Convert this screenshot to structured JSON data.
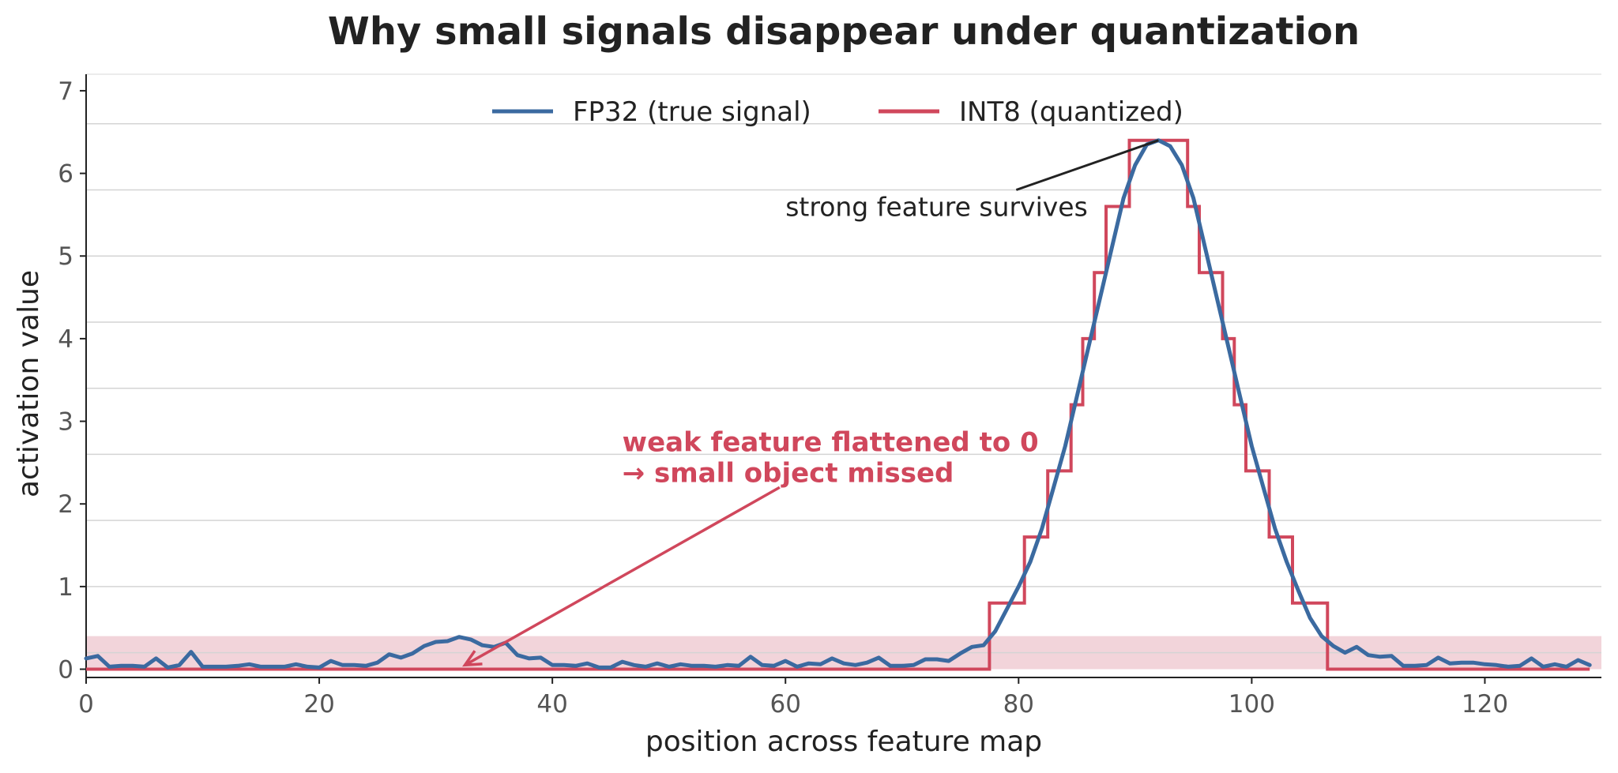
{
  "chart_data": {
    "type": "line",
    "title": "Why small signals disappear under quantization",
    "xlabel": "position across feature map",
    "ylabel": "activation value",
    "xlim": [
      0,
      130
    ],
    "ylim": [
      -0.1,
      7.2
    ],
    "xticks": [
      0,
      20,
      40,
      60,
      80,
      100,
      120
    ],
    "yticks": [
      0,
      1,
      2,
      3,
      4,
      5,
      6,
      7
    ],
    "grid": "horizontal",
    "legend_position": "top-center",
    "colors": {
      "fp32": "#3b6aa0",
      "int8": "#d0475c",
      "band": "#f2d4da",
      "text": "#222222"
    },
    "shaded_band": {
      "y0": 0,
      "y1": 0.4
    },
    "series": [
      {
        "name": "FP32 (true signal)",
        "kind": "line",
        "x": [
          0,
          1,
          2,
          3,
          4,
          5,
          6,
          7,
          8,
          9,
          10,
          11,
          12,
          13,
          14,
          15,
          16,
          17,
          18,
          19,
          20,
          21,
          22,
          23,
          24,
          25,
          26,
          27,
          28,
          29,
          30,
          31,
          32,
          33,
          34,
          35,
          36,
          37,
          38,
          39,
          40,
          41,
          42,
          43,
          44,
          45,
          46,
          47,
          48,
          49,
          50,
          51,
          52,
          53,
          54,
          55,
          56,
          57,
          58,
          59,
          60,
          61,
          62,
          63,
          64,
          65,
          66,
          67,
          68,
          69,
          70,
          71,
          72,
          73,
          74,
          75,
          76,
          77,
          78,
          79,
          80,
          81,
          82,
          83,
          84,
          85,
          86,
          87,
          88,
          89,
          90,
          91,
          92,
          93,
          94,
          95,
          96,
          97,
          98,
          99,
          100,
          101,
          102,
          103,
          104,
          105,
          106,
          107,
          108,
          109,
          110,
          111,
          112,
          113,
          114,
          115,
          116,
          117,
          118,
          119,
          120,
          121,
          122,
          123,
          124,
          125,
          126,
          127,
          128,
          129
        ],
        "y": [
          0.13,
          0.16,
          0.03,
          0.04,
          0.04,
          0.03,
          0.13,
          0.02,
          0.05,
          0.21,
          0.03,
          0.03,
          0.03,
          0.04,
          0.06,
          0.03,
          0.03,
          0.03,
          0.06,
          0.03,
          0.02,
          0.1,
          0.05,
          0.05,
          0.04,
          0.08,
          0.18,
          0.14,
          0.19,
          0.28,
          0.33,
          0.34,
          0.39,
          0.36,
          0.29,
          0.27,
          0.32,
          0.17,
          0.13,
          0.14,
          0.05,
          0.05,
          0.04,
          0.07,
          0.02,
          0.02,
          0.09,
          0.05,
          0.03,
          0.07,
          0.03,
          0.06,
          0.04,
          0.04,
          0.03,
          0.05,
          0.04,
          0.15,
          0.05,
          0.04,
          0.1,
          0.03,
          0.07,
          0.06,
          0.13,
          0.07,
          0.05,
          0.08,
          0.14,
          0.04,
          0.04,
          0.05,
          0.12,
          0.12,
          0.1,
          0.19,
          0.27,
          0.29,
          0.46,
          0.73,
          1.0,
          1.3,
          1.7,
          2.2,
          2.7,
          3.3,
          3.9,
          4.5,
          5.1,
          5.7,
          6.1,
          6.35,
          6.4,
          6.33,
          6.1,
          5.7,
          5.1,
          4.5,
          3.9,
          3.3,
          2.7,
          2.2,
          1.7,
          1.3,
          0.95,
          0.62,
          0.4,
          0.28,
          0.2,
          0.27,
          0.17,
          0.15,
          0.16,
          0.04,
          0.04,
          0.05,
          0.14,
          0.07,
          0.08,
          0.08,
          0.06,
          0.05,
          0.03,
          0.04,
          0.13,
          0.03,
          0.06,
          0.03,
          0.11,
          0.05
        ]
      },
      {
        "name": "INT8 (quantized)",
        "kind": "step",
        "x": [
          0,
          77.5,
          77.5,
          80.5,
          80.5,
          82.5,
          82.5,
          84.5,
          84.5,
          85.5,
          85.5,
          86.5,
          86.5,
          87.5,
          87.5,
          89.5,
          89.5,
          94.5,
          94.5,
          95.5,
          95.5,
          97.5,
          97.5,
          98.5,
          98.5,
          99.5,
          99.5,
          101.5,
          101.5,
          103.5,
          103.5,
          106.5,
          106.5,
          129
        ],
        "y": [
          0,
          0,
          0.8,
          0.8,
          1.6,
          1.6,
          2.4,
          2.4,
          3.2,
          3.2,
          4.0,
          4.0,
          4.8,
          4.8,
          5.6,
          5.6,
          6.4,
          6.4,
          5.6,
          5.6,
          4.8,
          4.8,
          4.0,
          4.0,
          3.2,
          3.2,
          2.4,
          2.4,
          1.6,
          1.6,
          0.8,
          0.8,
          0,
          0
        ]
      }
    ],
    "annotations": [
      {
        "id": "strong",
        "text": "strong feature survives",
        "x": 60,
        "y": 5.6,
        "arrow_to": [
          92,
          6.4
        ]
      },
      {
        "id": "weak",
        "lines": [
          "weak feature flattened to 0",
          "→ small object missed"
        ],
        "x": 46,
        "y": 2.75,
        "arrow_from": [
          59.5,
          2.2
        ],
        "arrow_to": [
          32.5,
          0.05
        ]
      }
    ]
  }
}
